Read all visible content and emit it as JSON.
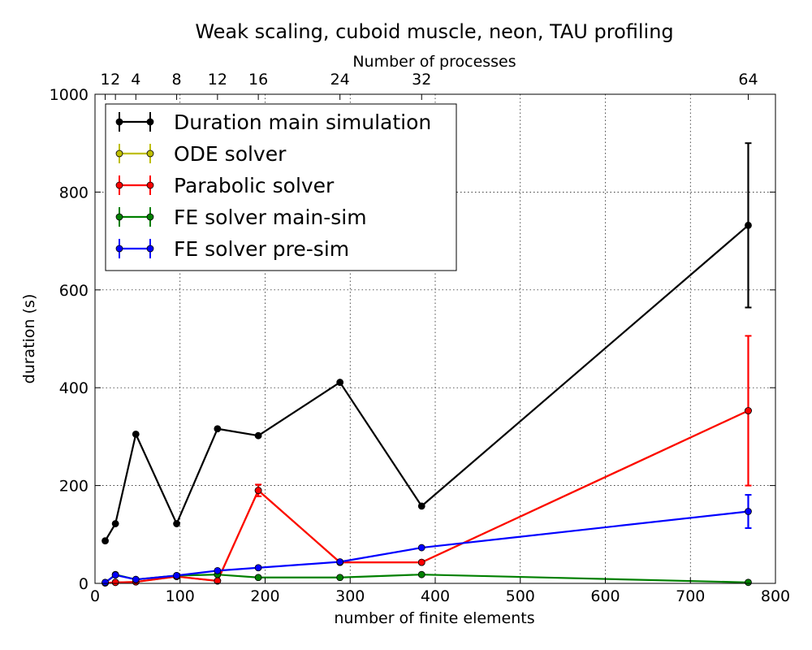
{
  "chart_data": {
    "type": "line",
    "title": "Weak scaling, cuboid muscle, neon, TAU profiling",
    "xlabel": "number of finite elements",
    "ylabel": "duration (s)",
    "top_xlabel": "Number of processes",
    "xlim": [
      0,
      800
    ],
    "ylim": [
      0,
      1000
    ],
    "xticks": [
      0,
      100,
      200,
      300,
      400,
      500,
      600,
      700,
      800
    ],
    "yticks": [
      0,
      200,
      400,
      600,
      800,
      1000
    ],
    "top_ticks": [
      {
        "x": 12,
        "label": "1"
      },
      {
        "x": 24,
        "label": "2"
      },
      {
        "x": 48,
        "label": "4"
      },
      {
        "x": 96,
        "label": "8"
      },
      {
        "x": 144,
        "label": "12"
      },
      {
        "x": 192,
        "label": "16"
      },
      {
        "x": 288,
        "label": "24"
      },
      {
        "x": 384,
        "label": "32"
      },
      {
        "x": 768,
        "label": "64"
      }
    ],
    "grid": true,
    "legend_position": "top-left",
    "x": [
      12,
      24,
      48,
      96,
      144,
      192,
      288,
      384,
      768
    ],
    "series": [
      {
        "name": "Duration main simulation",
        "color": "#000000",
        "values": [
          87,
          122,
          305,
          122,
          316,
          302,
          411,
          158,
          732
        ],
        "errors": [
          0,
          0,
          0,
          0,
          0,
          0,
          0,
          0,
          168
        ]
      },
      {
        "name": "ODE solver",
        "color": "#bfbf00",
        "values": [
          1,
          2,
          3,
          14,
          5,
          190,
          43,
          43,
          353
        ],
        "errors": [
          0,
          0,
          0,
          0,
          0,
          0,
          0,
          0,
          0
        ]
      },
      {
        "name": "Parabolic solver",
        "color": "#ff0000",
        "values": [
          1,
          2,
          3,
          14,
          5,
          190,
          43,
          43,
          353
        ],
        "errors": [
          0,
          0,
          0,
          0,
          0,
          12,
          0,
          0,
          153
        ]
      },
      {
        "name": "FE solver main-sim",
        "color": "#008000",
        "values": [
          1,
          18,
          8,
          16,
          18,
          12,
          12,
          18,
          2
        ],
        "errors": [
          0,
          0,
          0,
          0,
          0,
          0,
          0,
          0,
          0
        ]
      },
      {
        "name": "FE solver pre-sim",
        "color": "#0000ff",
        "values": [
          2,
          17,
          8,
          16,
          26,
          32,
          44,
          73,
          147
        ],
        "errors": [
          0,
          0,
          0,
          0,
          0,
          0,
          0,
          0,
          34
        ]
      }
    ]
  }
}
